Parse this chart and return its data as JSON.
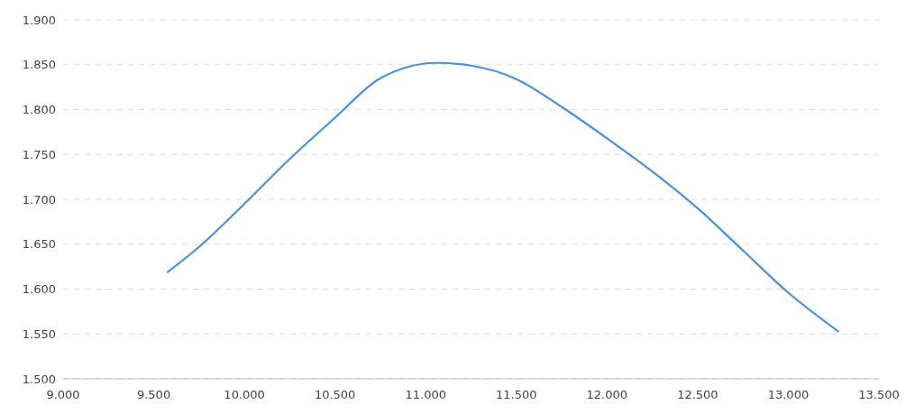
{
  "chart_data": {
    "type": "line",
    "x": [
      9.577,
      9.75,
      10.0,
      10.25,
      10.5,
      10.75,
      11.06,
      11.25,
      11.5,
      11.75,
      12.0,
      12.25,
      12.5,
      12.75,
      13.0,
      13.275
    ],
    "series": [
      {
        "color": "#4a90d9",
        "values": [
          1.619,
          1.647,
          1.695,
          1.745,
          1.791,
          1.835,
          1.852,
          1.849,
          1.834,
          1.803,
          1.768,
          1.731,
          1.69,
          1.643,
          1.596,
          1.553
        ]
      }
    ],
    "xlim": [
      9,
      13.5
    ],
    "xticks": [
      {
        "value": 9,
        "label": "9.000"
      },
      {
        "value": 9.5,
        "label": "9.500"
      },
      {
        "value": 10,
        "label": "10.000"
      },
      {
        "value": 10.5,
        "label": "10.500"
      },
      {
        "value": 11,
        "label": "11.000"
      },
      {
        "value": 11.5,
        "label": "11.500"
      },
      {
        "value": 12,
        "label": "12.000"
      },
      {
        "value": 12.5,
        "label": "12.500"
      },
      {
        "value": 13,
        "label": "13.000"
      },
      {
        "value": 13.5,
        "label": "13.500"
      }
    ],
    "ylim": [
      1.5,
      1.9
    ],
    "yticks": [
      {
        "value": 1.5,
        "label": "1.500"
      },
      {
        "value": 1.55,
        "label": "1.550"
      },
      {
        "value": 1.6,
        "label": "1.600"
      },
      {
        "value": 1.65,
        "label": "1.650"
      },
      {
        "value": 1.7,
        "label": "1.700"
      },
      {
        "value": 1.75,
        "label": "1.750"
      },
      {
        "value": 1.8,
        "label": "1.800"
      },
      {
        "value": 1.85,
        "label": "1.850"
      },
      {
        "value": 1.9,
        "label": "1.900"
      }
    ],
    "grid": "y",
    "marker": "none",
    "line_style": "solid"
  }
}
